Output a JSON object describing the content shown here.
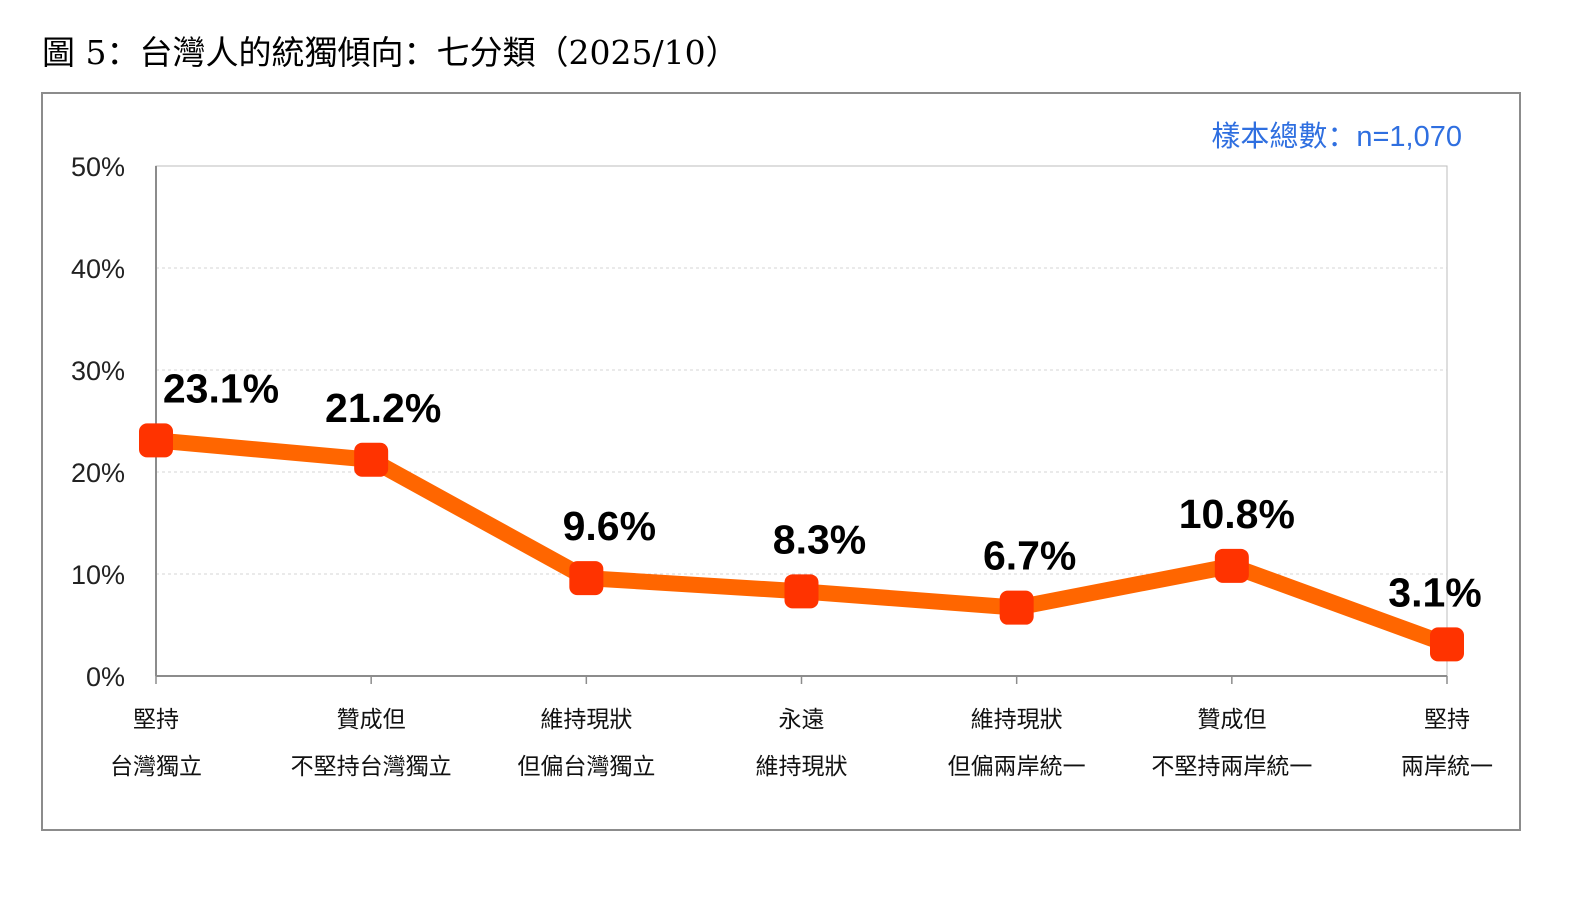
{
  "title": "圖 5：台灣人的統獨傾向：七分類（2025/10）",
  "sample_note": "樣本總數：n=1,070",
  "colors": {
    "line": "#ff6600",
    "marker": "#ff3300",
    "note": "#2f6fe0"
  },
  "chart_data": {
    "type": "line",
    "title": "圖 5：台灣人的統獨傾向：七分類（2025/10）",
    "categories": [
      [
        "堅持",
        "台灣獨立"
      ],
      [
        "贊成但",
        "不堅持台灣獨立"
      ],
      [
        "維持現狀",
        "但偏台灣獨立"
      ],
      [
        "永遠",
        "維持現狀"
      ],
      [
        "維持現狀",
        "但偏兩岸統一"
      ],
      [
        "贊成但",
        "不堅持兩岸統一"
      ],
      [
        "堅持",
        "兩岸統一"
      ]
    ],
    "values": [
      23.1,
      21.2,
      9.6,
      8.3,
      6.7,
      10.8,
      3.1
    ],
    "data_labels": [
      "23.1%",
      "21.2%",
      "9.6%",
      "8.3%",
      "6.7%",
      "10.8%",
      "3.1%"
    ],
    "yticks": [
      "0%",
      "10%",
      "20%",
      "30%",
      "40%",
      "50%"
    ],
    "ylim": [
      0,
      50
    ],
    "grid": true,
    "legend": "none"
  }
}
